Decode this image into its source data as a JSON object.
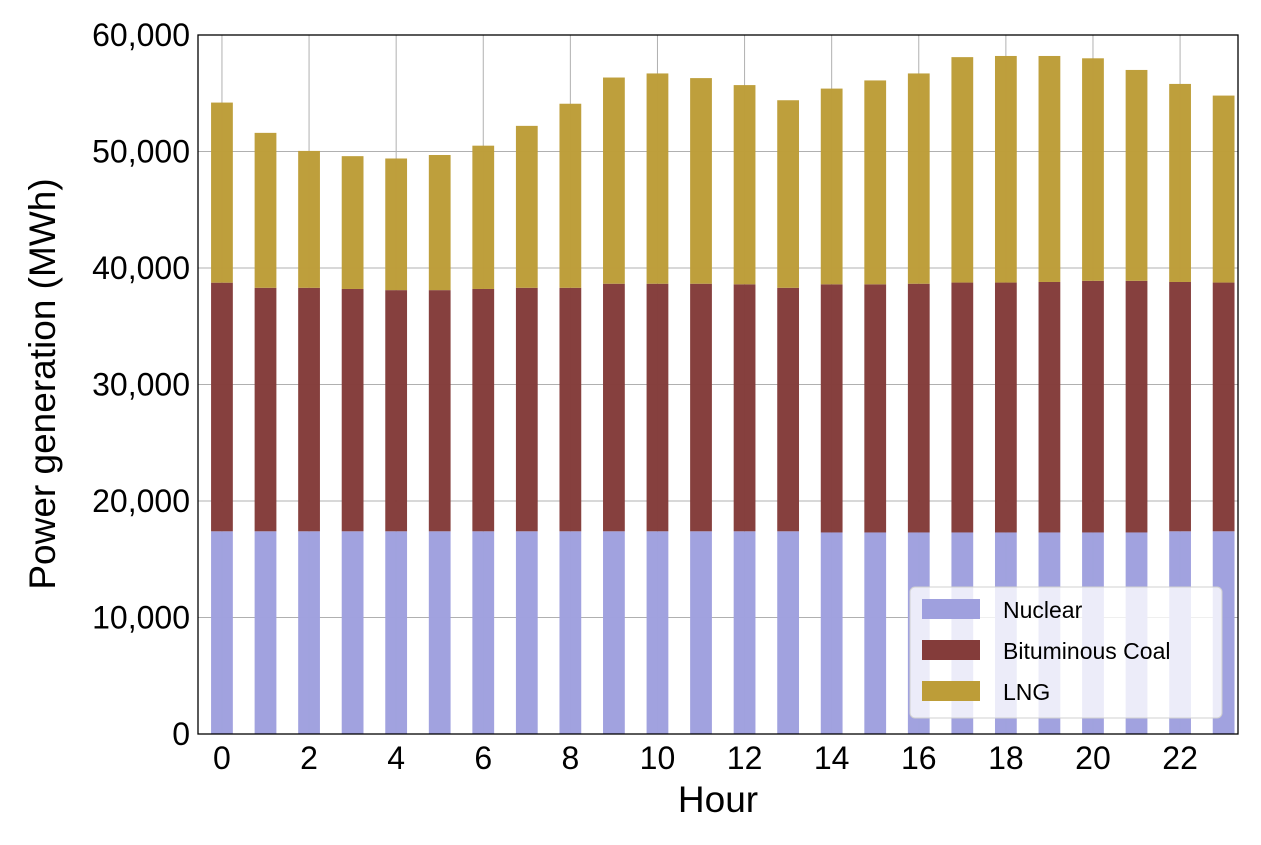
{
  "chart_data": {
    "type": "bar",
    "stacked": true,
    "title": "",
    "xlabel": "Hour",
    "ylabel": "Power generation (MWh)",
    "x": [
      0,
      1,
      2,
      3,
      4,
      5,
      6,
      7,
      8,
      9,
      10,
      11,
      12,
      13,
      14,
      15,
      16,
      17,
      18,
      19,
      20,
      21,
      22,
      23
    ],
    "xticks": [
      0,
      2,
      4,
      6,
      8,
      10,
      12,
      14,
      16,
      18,
      20,
      22
    ],
    "xtick_labels": [
      "0",
      "2",
      "4",
      "6",
      "8",
      "10",
      "12",
      "14",
      "16",
      "18",
      "20",
      "22"
    ],
    "yticks": [
      0,
      10000,
      20000,
      30000,
      40000,
      50000,
      60000
    ],
    "ytick_labels": [
      "0",
      "10,000",
      "20,000",
      "30,000",
      "40,000",
      "50,000",
      "60,000"
    ],
    "xlim": [
      -0.55,
      23.33
    ],
    "ylim": [
      0,
      60000
    ],
    "grid": true,
    "legend_position": "bottom-right",
    "series": [
      {
        "name": "Nuclear",
        "color": "#9fa0de",
        "values": [
          17400,
          17400,
          17400,
          17400,
          17400,
          17400,
          17400,
          17400,
          17400,
          17400,
          17400,
          17400,
          17400,
          17400,
          17300,
          17300,
          17300,
          17300,
          17300,
          17300,
          17300,
          17300,
          17400,
          17400
        ]
      },
      {
        "name": "Bituminous Coal",
        "color": "#843c3a",
        "values": [
          21340,
          20900,
          20900,
          20800,
          20700,
          20700,
          20800,
          20900,
          20900,
          21250,
          21250,
          21250,
          21200,
          20900,
          21300,
          21300,
          21350,
          21450,
          21450,
          21500,
          21600,
          21600,
          21400,
          21350
        ]
      },
      {
        "name": "LNG",
        "color": "#bd9d38",
        "values": [
          15460,
          13300,
          11750,
          11400,
          11300,
          11600,
          12300,
          13900,
          15800,
          17700,
          18050,
          17650,
          17100,
          16100,
          16800,
          17500,
          18050,
          19350,
          19450,
          19400,
          19100,
          18100,
          17000,
          16050
        ]
      }
    ]
  }
}
